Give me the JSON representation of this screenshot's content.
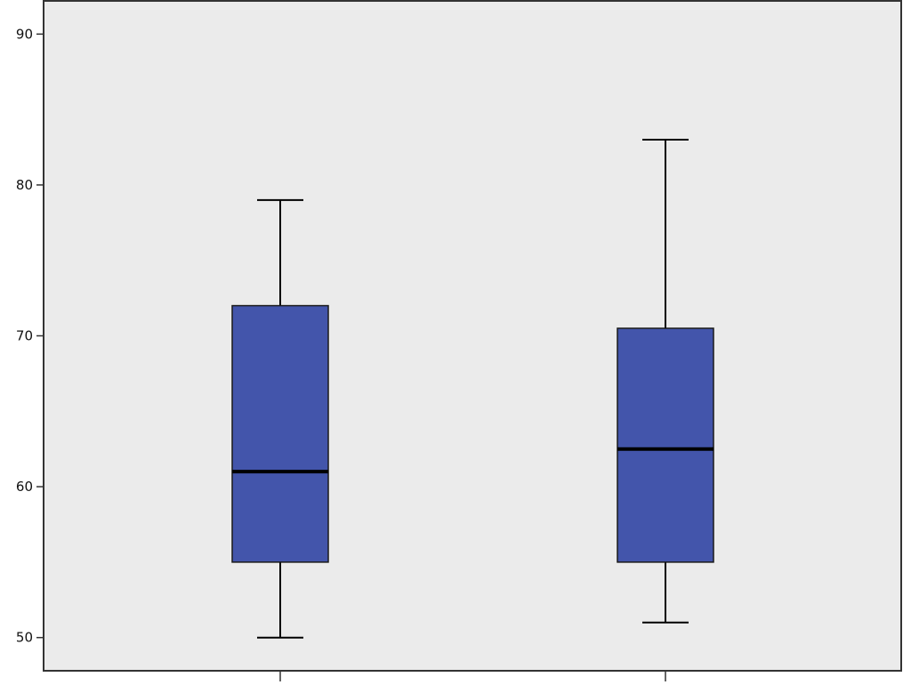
{
  "chart_data": {
    "type": "box",
    "ylim": [
      47.8,
      92.2
    ],
    "yticks": [
      50,
      60,
      70,
      80,
      90
    ],
    "grid": false,
    "colors": {
      "plot_background": "#ebebeb",
      "box_fill": "#4355ab",
      "line": "#000000"
    },
    "boxes": [
      {
        "min": 50,
        "q1": 55,
        "median": 61,
        "q3": 72,
        "max": 79
      },
      {
        "min": 51,
        "q1": 55,
        "median": 62.5,
        "q3": 70.5,
        "max": 83
      }
    ]
  }
}
